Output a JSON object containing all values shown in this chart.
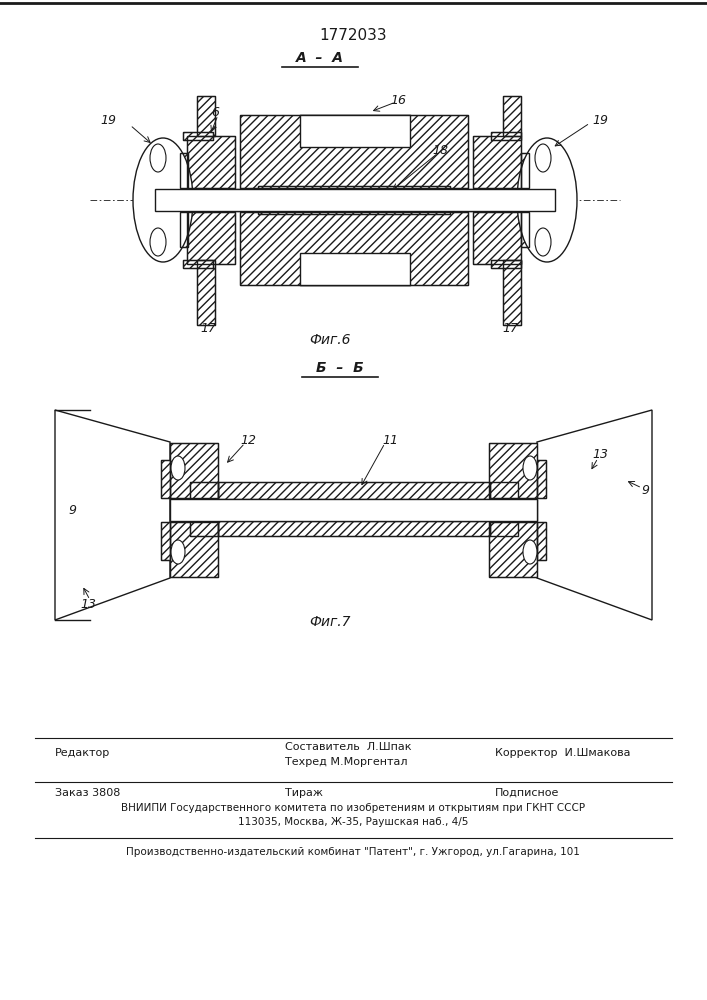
{
  "title": "1772033",
  "fig6_label": "А – А",
  "fig6_caption": "Фиг.6",
  "fig7_label": "Б – Б",
  "fig7_caption": "Фиг.7",
  "line_color": "#1a1a1a",
  "footer3": "Производственно-издательский комбинат \"Патент\", г. Ужгород, ул.Гагарина, 101"
}
